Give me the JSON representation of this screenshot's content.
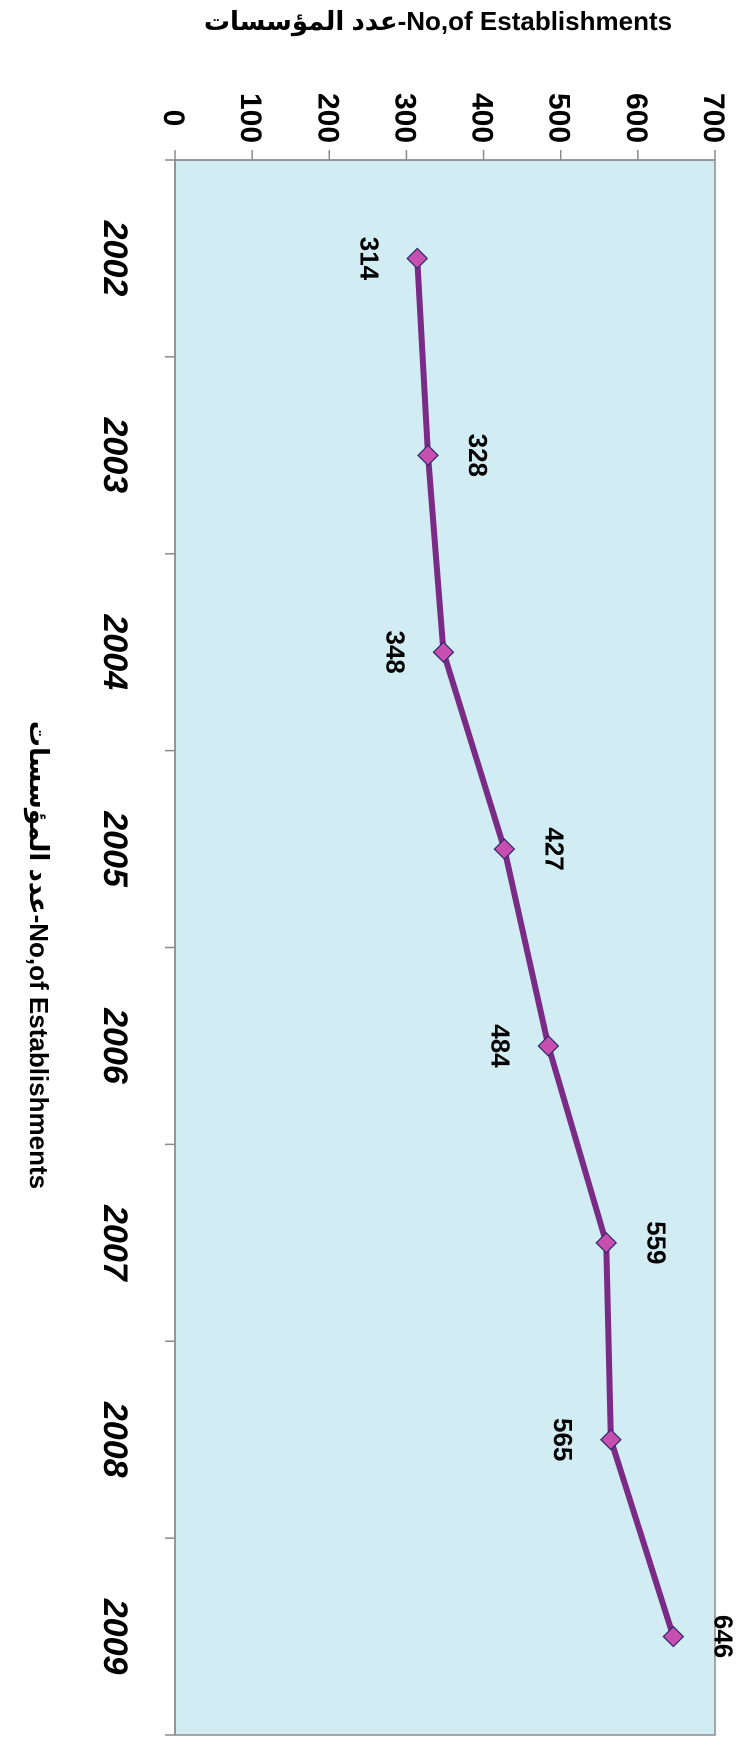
{
  "chart_data": {
    "type": "line",
    "title": "عدد المؤسسات-No,of Establishments",
    "xlabel": "",
    "ylabel": "عدد المؤسسات-No,of Establishments",
    "categories": [
      "2002",
      "2003",
      "2004",
      "2005",
      "2006",
      "2007",
      "2008",
      "2009"
    ],
    "series": [
      {
        "values": [
          314,
          328,
          348,
          427,
          484,
          559,
          565,
          646
        ],
        "data_labels": [
          "314",
          "328",
          "348",
          "427",
          "484",
          "559",
          "565",
          "646"
        ]
      }
    ],
    "yticks": [
      "0",
      "100",
      "200",
      "300",
      "400",
      "500",
      "600",
      "700"
    ],
    "ylim": [
      0,
      700
    ],
    "grid": false,
    "legend": "none",
    "orientation": "rotated 90° clockwise",
    "colors": {
      "plot_background": "#d1edf3",
      "line": "#7a2b85",
      "marker_fill": "#c84fb0",
      "marker_stroke": "#2a2a6a",
      "axis": "#8a8a8a"
    }
  }
}
